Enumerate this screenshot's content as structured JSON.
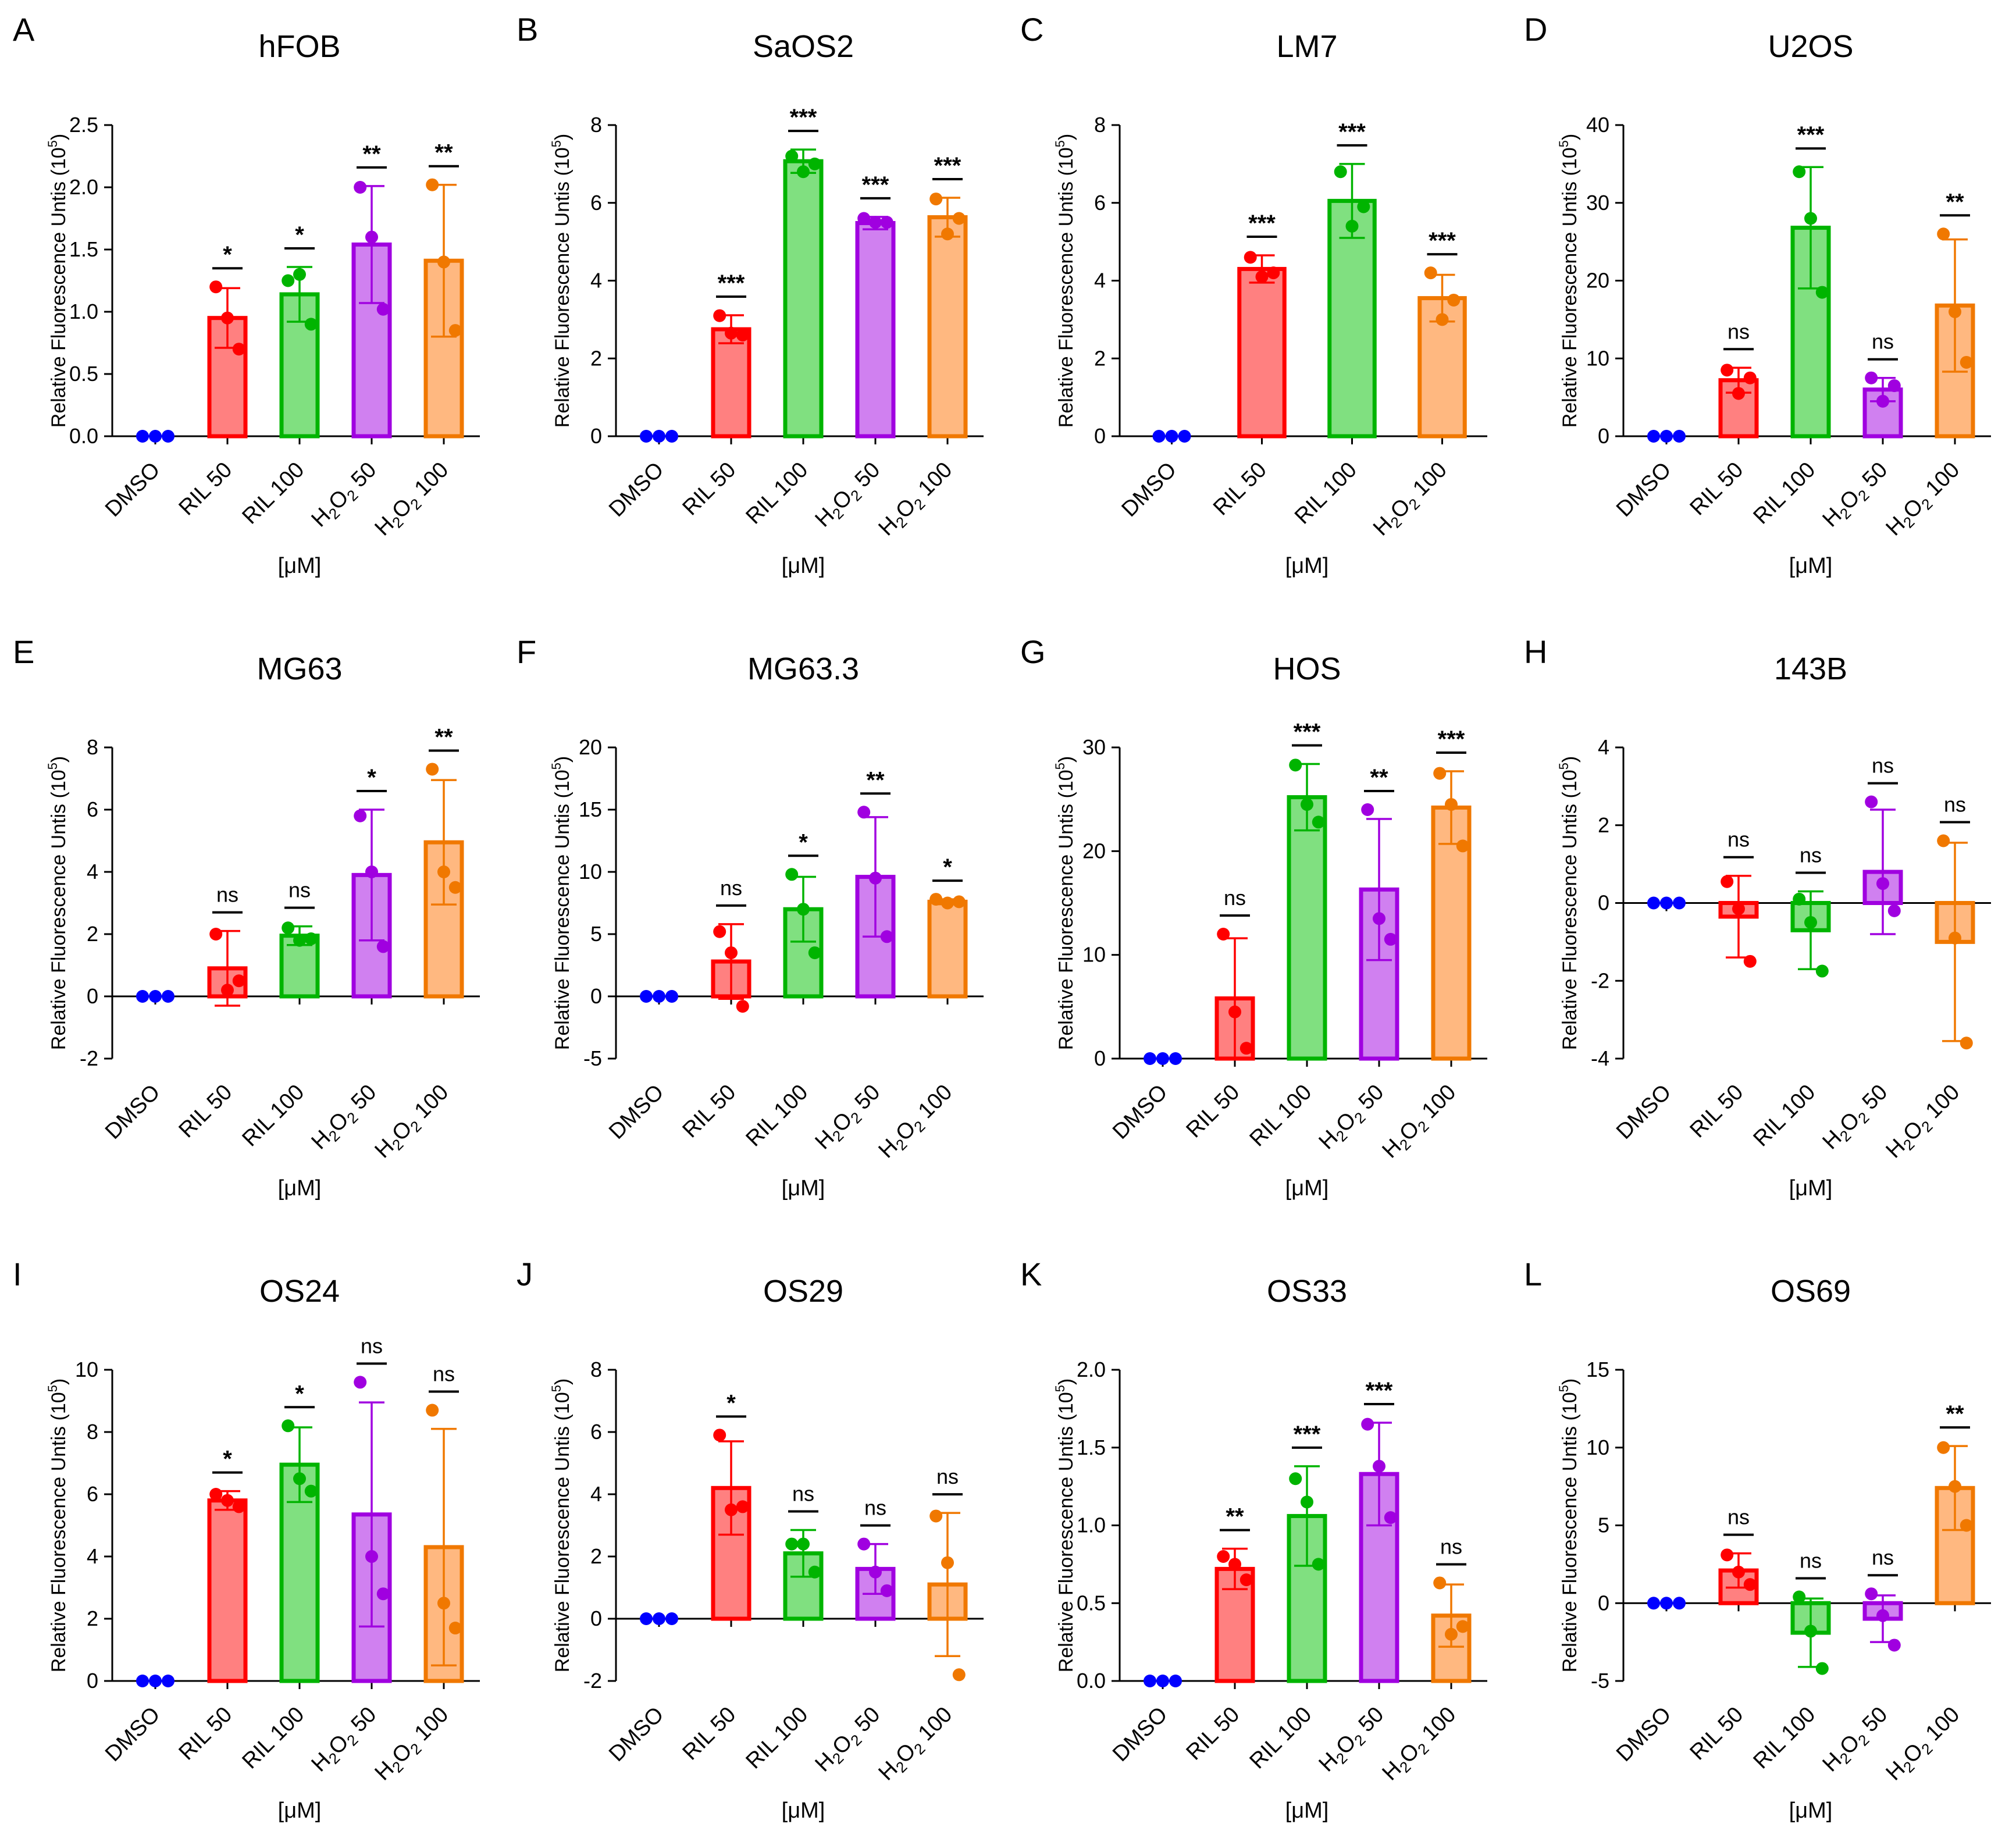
{
  "figure": {
    "condition_colors": {
      "DMSO": "#0000ff",
      "RIL 50": "#ff0000",
      "RIL 100": "#00b400",
      "H2O2 50": "#a000e0",
      "H2O2 100": "#f07800"
    },
    "fill_colors": {
      "DMSO": "#6666ff",
      "RIL 50": "#ff8080",
      "RIL 100": "#80e080",
      "H2O2 50": "#d080f0",
      "H2O2 100": "#ffb880"
    },
    "ylabel_text": "Relative Fluorescence Untis (10",
    "ylabel_exp": "5",
    "ylabel_close": ")",
    "xunits": "[μM]"
  },
  "chart_data": [
    {
      "panel": "A",
      "title": "hFOB",
      "type": "bar",
      "categories": [
        "DMSO",
        "RIL 50",
        "RIL 100",
        "H2O2 50",
        "H2O2 100"
      ],
      "values": [
        0,
        0.95,
        1.14,
        1.54,
        1.41
      ],
      "errors": [
        0,
        0.24,
        0.22,
        0.47,
        0.61
      ],
      "points": [
        [
          0,
          0,
          0
        ],
        [
          1.2,
          0.95,
          0.7
        ],
        [
          1.25,
          1.3,
          0.9
        ],
        [
          2.0,
          1.6,
          1.02
        ],
        [
          2.02,
          1.4,
          0.85
        ]
      ],
      "significance": [
        "",
        "*",
        "*",
        "**",
        "**"
      ],
      "ylim": [
        0,
        2.5
      ],
      "yticks": [
        "0.0",
        "0.5",
        "1.0",
        "1.5",
        "2.0",
        "2.5"
      ],
      "ytick_values": [
        0,
        0.5,
        1.0,
        1.5,
        2.0,
        2.5
      ]
    },
    {
      "panel": "B",
      "title": "SaOS2",
      "type": "bar",
      "categories": [
        "DMSO",
        "RIL 50",
        "RIL 100",
        "H2O2 50",
        "H2O2 100"
      ],
      "values": [
        0,
        2.75,
        7.07,
        5.48,
        5.63
      ],
      "errors": [
        0,
        0.36,
        0.3,
        0.16,
        0.5
      ],
      "points": [
        [
          0,
          0,
          0
        ],
        [
          3.1,
          2.65,
          2.6
        ],
        [
          7.2,
          6.8,
          7.0
        ],
        [
          5.6,
          5.5,
          5.5
        ],
        [
          6.1,
          5.2,
          5.6
        ]
      ],
      "significance": [
        "",
        "***",
        "***",
        "***",
        "***"
      ],
      "ylim": [
        0,
        8
      ],
      "yticks": [
        "0",
        "2",
        "4",
        "6",
        "8"
      ],
      "ytick_values": [
        0,
        2,
        4,
        6,
        8
      ]
    },
    {
      "panel": "C",
      "title": "LM7",
      "type": "bar",
      "categories": [
        "DMSO",
        "RIL 50",
        "RIL 100",
        "H2O2 100"
      ],
      "values": [
        0,
        4.3,
        6.05,
        3.55
      ],
      "errors": [
        0,
        0.35,
        0.95,
        0.6
      ],
      "points": [
        [
          0,
          0,
          0
        ],
        [
          4.6,
          4.1,
          4.2
        ],
        [
          6.8,
          5.4,
          5.9
        ],
        [
          4.2,
          3.0,
          3.5
        ]
      ],
      "significance": [
        "",
        "***",
        "***",
        "***"
      ],
      "ylim": [
        0,
        8
      ],
      "yticks": [
        "0",
        "2",
        "4",
        "6",
        "8"
      ],
      "ytick_values": [
        0,
        2,
        4,
        6,
        8
      ]
    },
    {
      "panel": "D",
      "title": "U2OS",
      "type": "bar",
      "categories": [
        "DMSO",
        "RIL 50",
        "RIL 100",
        "H2O2 50",
        "H2O2 100"
      ],
      "values": [
        0,
        7.2,
        26.8,
        6.0,
        16.8
      ],
      "errors": [
        0,
        1.6,
        7.8,
        1.5,
        8.5
      ],
      "points": [
        [
          0,
          0,
          0
        ],
        [
          8.5,
          5.5,
          7.5
        ],
        [
          34,
          28,
          18.5
        ],
        [
          7.5,
          4.5,
          6.5
        ],
        [
          26,
          16,
          9.5
        ]
      ],
      "significance": [
        "",
        "ns",
        "***",
        "ns",
        "**"
      ],
      "ylim": [
        0,
        40
      ],
      "yticks": [
        "0",
        "10",
        "20",
        "30",
        "40"
      ],
      "ytick_values": [
        0,
        10,
        20,
        30,
        40
      ]
    },
    {
      "panel": "E",
      "title": "MG63",
      "type": "bar",
      "categories": [
        "DMSO",
        "RIL 50",
        "RIL 100",
        "H2O2 50",
        "H2O2 100"
      ],
      "values": [
        0,
        0.9,
        1.95,
        3.9,
        4.95
      ],
      "errors": [
        0,
        1.2,
        0.3,
        2.1,
        2.0
      ],
      "points": [
        [
          0,
          0,
          0
        ],
        [
          2.0,
          0.2,
          0.5
        ],
        [
          2.2,
          1.8,
          1.85
        ],
        [
          5.8,
          4.0,
          1.6
        ],
        [
          7.3,
          4.0,
          3.5
        ]
      ],
      "significance": [
        "",
        "ns",
        "ns",
        "*",
        "**"
      ],
      "ylim": [
        -2,
        8
      ],
      "yticks": [
        "-2",
        "0",
        "2",
        "4",
        "6",
        "8"
      ],
      "ytick_values": [
        -2,
        0,
        2,
        4,
        6,
        8
      ]
    },
    {
      "panel": "F",
      "title": "MG63.3",
      "type": "bar",
      "categories": [
        "DMSO",
        "RIL 50",
        "RIL 100",
        "H2O2 50",
        "H2O2 100"
      ],
      "values": [
        0,
        2.8,
        7.0,
        9.6,
        7.6
      ],
      "errors": [
        0,
        3.0,
        2.6,
        4.8,
        0.2
      ],
      "points": [
        [
          0,
          0,
          0
        ],
        [
          5.2,
          3.5,
          -0.8
        ],
        [
          9.8,
          7.0,
          3.5
        ],
        [
          14.8,
          9.5,
          4.8
        ],
        [
          7.8,
          7.5,
          7.6
        ]
      ],
      "significance": [
        "",
        "ns",
        "*",
        "**",
        "*"
      ],
      "ylim": [
        -5,
        20
      ],
      "yticks": [
        "-5",
        "0",
        "5",
        "10",
        "15",
        "20"
      ],
      "ytick_values": [
        -5,
        0,
        5,
        10,
        15,
        20
      ]
    },
    {
      "panel": "G",
      "title": "HOS",
      "type": "bar",
      "categories": [
        "DMSO",
        "RIL 50",
        "RIL 100",
        "H2O2 50",
        "H2O2 100"
      ],
      "values": [
        0,
        5.8,
        25.2,
        16.3,
        24.2
      ],
      "errors": [
        0,
        5.8,
        3.2,
        6.8,
        3.5
      ],
      "points": [
        [
          0,
          0,
          0
        ],
        [
          12,
          4.5,
          1.0
        ],
        [
          28.3,
          24.5,
          22.8
        ],
        [
          24,
          13.5,
          11.5
        ],
        [
          27.5,
          24.5,
          20.5
        ]
      ],
      "significance": [
        "",
        "ns",
        "***",
        "**",
        "***"
      ],
      "ylim": [
        0,
        30
      ],
      "yticks": [
        "0",
        "10",
        "20",
        "30"
      ],
      "ytick_values": [
        0,
        10,
        20,
        30
      ]
    },
    {
      "panel": "H",
      "title": "143B",
      "type": "bar",
      "categories": [
        "DMSO",
        "RIL 50",
        "RIL 100",
        "H2O2 50",
        "H2O2 100"
      ],
      "values": [
        0,
        -0.35,
        -0.7,
        0.8,
        -1.0
      ],
      "errors": [
        0,
        1.05,
        1.0,
        1.6,
        2.55
      ],
      "points": [
        [
          0,
          0,
          0
        ],
        [
          0.55,
          -0.15,
          -1.5
        ],
        [
          0.1,
          -0.5,
          -1.75
        ],
        [
          2.6,
          0.5,
          -0.2
        ],
        [
          1.6,
          -0.9,
          -3.6
        ]
      ],
      "significance": [
        "",
        "ns",
        "ns",
        "ns",
        "ns"
      ],
      "ylim": [
        -4,
        4
      ],
      "yticks": [
        "-4",
        "-2",
        "0",
        "2",
        "4"
      ],
      "ytick_values": [
        -4,
        -2,
        0,
        2,
        4
      ]
    },
    {
      "panel": "I",
      "title": "OS24",
      "type": "bar",
      "categories": [
        "DMSO",
        "RIL 50",
        "RIL 100",
        "H2O2 50",
        "H2O2 100"
      ],
      "values": [
        0,
        5.8,
        6.95,
        5.35,
        4.3
      ],
      "errors": [
        0,
        0.3,
        1.2,
        3.6,
        3.8
      ],
      "points": [
        [
          0,
          0,
          0
        ],
        [
          6.0,
          5.8,
          5.6
        ],
        [
          8.2,
          6.5,
          6.1
        ],
        [
          9.6,
          4.0,
          2.8
        ],
        [
          8.7,
          2.5,
          1.7
        ]
      ],
      "significance": [
        "",
        "*",
        "*",
        "ns",
        "ns"
      ],
      "ylim": [
        0,
        10
      ],
      "yticks": [
        "0",
        "2",
        "4",
        "6",
        "8",
        "10"
      ],
      "ytick_values": [
        0,
        2,
        4,
        6,
        8,
        10
      ]
    },
    {
      "panel": "J",
      "title": "OS29",
      "type": "bar",
      "categories": [
        "DMSO",
        "RIL 50",
        "RIL 100",
        "H2O2 50",
        "H2O2 100"
      ],
      "values": [
        0,
        4.2,
        2.1,
        1.6,
        1.1
      ],
      "errors": [
        0,
        1.5,
        0.75,
        0.8,
        2.3
      ],
      "points": [
        [
          0,
          0,
          0
        ],
        [
          5.9,
          3.5,
          3.6
        ],
        [
          2.4,
          2.4,
          1.5
        ],
        [
          2.4,
          1.5,
          0.9
        ],
        [
          3.3,
          1.8,
          -1.8
        ]
      ],
      "significance": [
        "",
        "*",
        "ns",
        "ns",
        "ns"
      ],
      "ylim": [
        -2,
        8
      ],
      "yticks": [
        "-2",
        "0",
        "2",
        "4",
        "6",
        "8"
      ],
      "ytick_values": [
        -2,
        0,
        2,
        4,
        6,
        8
      ]
    },
    {
      "panel": "K",
      "title": "OS33",
      "type": "bar",
      "categories": [
        "DMSO",
        "RIL 50",
        "RIL 100",
        "H2O2 50",
        "H2O2 100"
      ],
      "values": [
        0,
        0.72,
        1.06,
        1.33,
        0.42
      ],
      "errors": [
        0,
        0.13,
        0.32,
        0.33,
        0.2
      ],
      "points": [
        [
          0,
          0,
          0
        ],
        [
          0.8,
          0.75,
          0.65
        ],
        [
          1.3,
          1.15,
          0.75
        ],
        [
          1.65,
          1.38,
          1.05
        ],
        [
          0.63,
          0.3,
          0.35
        ]
      ],
      "significance": [
        "",
        "**",
        "***",
        "***",
        "ns"
      ],
      "ylim": [
        0,
        2.0
      ],
      "yticks": [
        "0.0",
        "0.5",
        "1.0",
        "1.5",
        "2.0"
      ],
      "ytick_values": [
        0,
        0.5,
        1.0,
        1.5,
        2.0
      ]
    },
    {
      "panel": "L",
      "title": "OS69",
      "type": "bar",
      "categories": [
        "DMSO",
        "RIL 50",
        "RIL 100",
        "H2O2 50",
        "H2O2 100"
      ],
      "values": [
        0,
        2.1,
        -1.9,
        -1.0,
        7.4
      ],
      "errors": [
        0,
        1.1,
        2.2,
        1.5,
        2.7
      ],
      "points": [
        [
          0,
          0,
          0
        ],
        [
          3.1,
          2.0,
          1.2
        ],
        [
          0.4,
          -1.8,
          -4.2
        ],
        [
          0.6,
          -0.8,
          -2.7
        ],
        [
          10.0,
          7.5,
          5.0
        ]
      ],
      "significance": [
        "",
        "ns",
        "ns",
        "ns",
        "**"
      ],
      "ylim": [
        -5,
        15
      ],
      "yticks": [
        "-5",
        "0",
        "5",
        "10",
        "15"
      ],
      "ytick_values": [
        -5,
        0,
        5,
        10,
        15
      ]
    }
  ]
}
